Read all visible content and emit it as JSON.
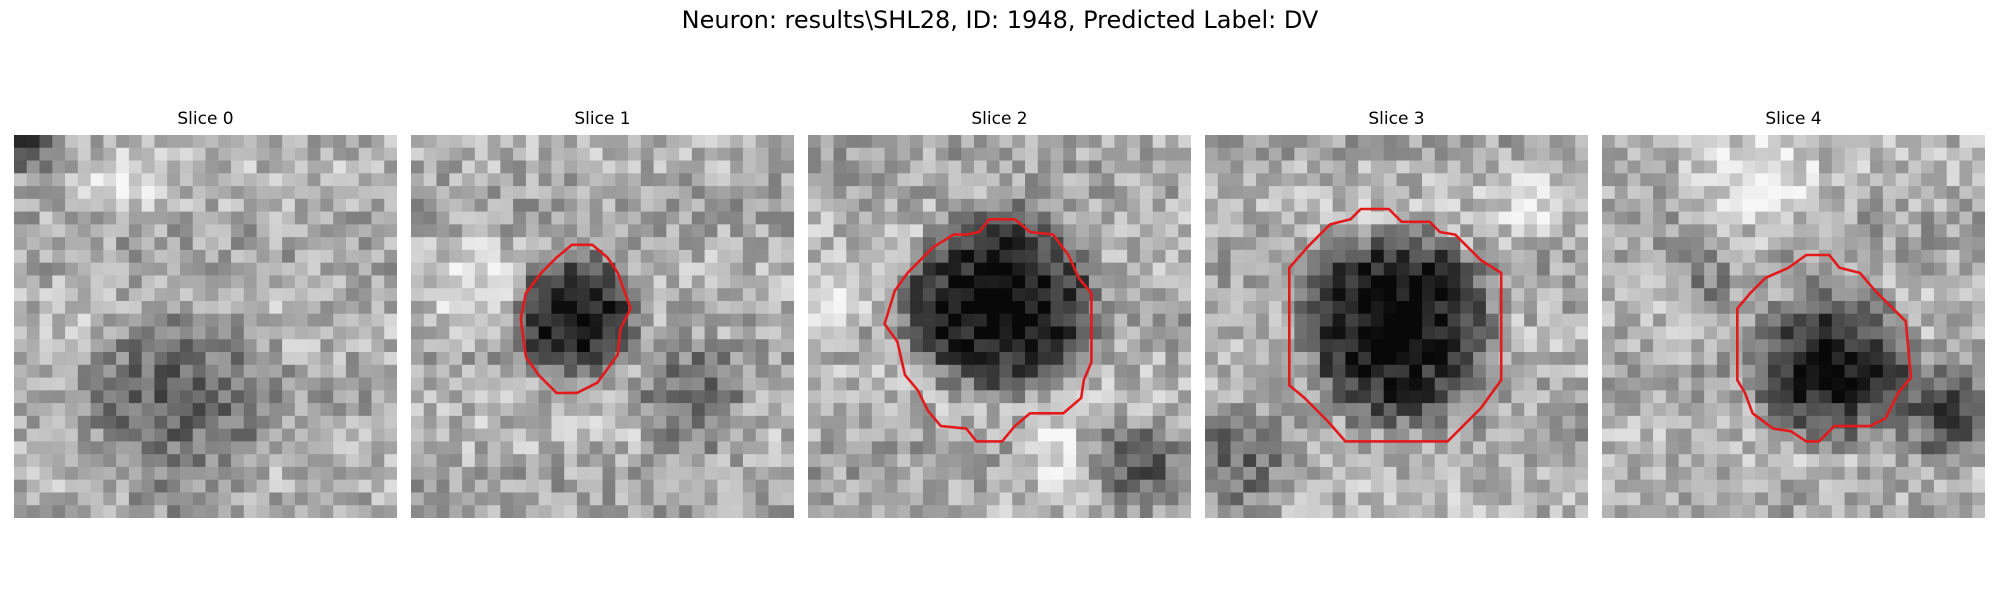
{
  "figure": {
    "title": "Neuron: results\\SHL28, ID: 1948, Predicted Label: DV",
    "contour_color": "#e31a1c"
  },
  "panels": [
    {
      "title": "Slice 0",
      "has_contour": false,
      "dark_blob": "weak, lower-center",
      "seed": 11
    },
    {
      "title": "Slice 1",
      "has_contour": true,
      "dark_blob": "small, center",
      "seed": 23
    },
    {
      "title": "Slice 2",
      "has_contour": true,
      "dark_blob": "large, center",
      "seed": 37
    },
    {
      "title": "Slice 3",
      "has_contour": true,
      "dark_blob": "large, center",
      "seed": 53
    },
    {
      "title": "Slice 4",
      "has_contour": true,
      "dark_blob": "medium, center-right",
      "seed": 71
    }
  ]
}
